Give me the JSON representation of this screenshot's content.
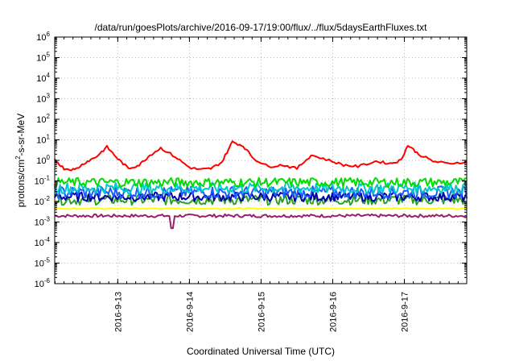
{
  "chart_data": {
    "type": "line",
    "title": "/data/run/goesPlots/archive/2016-09-17/19:00/flux/../flux/5daysEarthFluxes.txt",
    "xlabel": "Coordinated Universal Time (UTC)",
    "ylabel": {
      "base": "protons/cm",
      "sup": "2",
      "rest": "-s-sr-MeV"
    },
    "x_range_days": [
      12.12,
      17.87
    ],
    "x_ticks": [
      {
        "label": "2016-9-13",
        "day": 13
      },
      {
        "label": "2016-9-14",
        "day": 14
      },
      {
        "label": "2016-9-15",
        "day": 15
      },
      {
        "label": "2016-9-16",
        "day": 16
      },
      {
        "label": "2016-9-17",
        "day": 17
      }
    ],
    "y_scale": "log",
    "y_exponent_range": [
      -6,
      6
    ],
    "y_ticks": [
      {
        "base": "10",
        "exp": "-6",
        "value_exp": -6
      },
      {
        "base": "10",
        "exp": "-5",
        "value_exp": -5
      },
      {
        "base": "10",
        "exp": "-4",
        "value_exp": -4
      },
      {
        "base": "10",
        "exp": "-3",
        "value_exp": -3
      },
      {
        "base": "10",
        "exp": "-2",
        "value_exp": -2
      },
      {
        "base": "10",
        "exp": "-1",
        "value_exp": -1
      },
      {
        "base": "10",
        "exp": "0",
        "value_exp": 0
      },
      {
        "base": "10",
        "exp": "1",
        "value_exp": 1
      },
      {
        "base": "10",
        "exp": "2",
        "value_exp": 2
      },
      {
        "base": "10",
        "exp": "3",
        "value_exp": 3
      },
      {
        "base": "10",
        "exp": "4",
        "value_exp": 4
      },
      {
        "base": "10",
        "exp": "5",
        "value_exp": 5
      },
      {
        "base": "10",
        "exp": "6",
        "value_exp": 6
      }
    ],
    "grid": true,
    "series": [
      {
        "color": "#ff0000",
        "x_days": [
          12.12,
          12.25,
          12.4,
          12.55,
          12.7,
          12.85,
          13.0,
          13.15,
          13.3,
          13.45,
          13.6,
          13.8,
          14.0,
          14.15,
          14.3,
          14.45,
          14.6,
          14.75,
          14.9,
          15.1,
          15.3,
          15.5,
          15.7,
          15.95,
          16.15,
          16.35,
          16.6,
          16.8,
          16.95,
          17.05,
          17.2,
          17.4,
          17.6,
          17.87
        ],
        "values": [
          1.1,
          0.4,
          0.35,
          0.8,
          1.5,
          4.5,
          1.2,
          0.4,
          0.6,
          1.8,
          4.0,
          1.5,
          0.45,
          0.35,
          0.4,
          0.8,
          8.0,
          5.0,
          1.2,
          0.5,
          0.6,
          0.4,
          1.8,
          1.0,
          0.6,
          0.5,
          0.9,
          0.7,
          1.0,
          5.5,
          2.0,
          0.9,
          0.7,
          0.85
        ]
      },
      {
        "color": "#00dd00",
        "base": 0.085,
        "noise": 0.45
      },
      {
        "color": "#00c8c8",
        "base": 0.045,
        "noise": 0.55
      },
      {
        "color": "#1a5cff",
        "base": 0.028,
        "noise": 0.6
      },
      {
        "color": "#0000aa",
        "base": 0.017,
        "noise": 0.45
      },
      {
        "color": "#2aa02a",
        "base": 0.012,
        "noise": 0.5
      },
      {
        "color": "#ffff00",
        "base": 0.0045,
        "noise": 0.06
      },
      {
        "color": "#9a1f6a",
        "base": 0.002,
        "noise": 0.15,
        "dip_day": 13.75,
        "dip_value": 0.0005
      }
    ]
  }
}
